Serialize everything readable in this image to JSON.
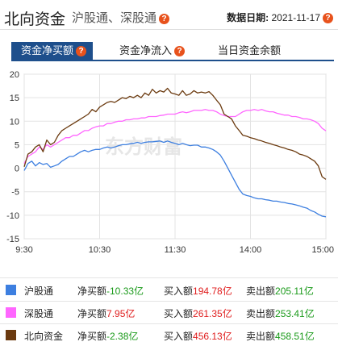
{
  "header": {
    "title": "北向资金",
    "subtitle": "沪股通、深股通",
    "date_label": "数据日期:",
    "date_value": "2021-11-17",
    "help_mark": "?"
  },
  "tabs": [
    {
      "label": "资金净买额",
      "active": true
    },
    {
      "label": "资金净流入",
      "active": false
    },
    {
      "label": "当日资金余额",
      "active": false
    }
  ],
  "watermark": "东方财富",
  "colors": {
    "hgt": "#3d7fe0",
    "sgt": "#ff66ff",
    "north": "#6b3a0f",
    "accent": "#1e4f8c",
    "help": "#e8521c"
  },
  "chart_data": {
    "type": "line",
    "y_ticks": [
      "20",
      "15",
      "10",
      "5",
      "0",
      "-5",
      "-10",
      "-15"
    ],
    "x_ticks": [
      "9:30",
      "10:30",
      "11:30",
      "14:00",
      "15:00"
    ],
    "ylim": [
      -15,
      20
    ],
    "x_range_minutes": [
      0,
      240
    ],
    "x_tick_minutes": [
      0,
      60,
      120,
      180,
      240
    ],
    "grid": true,
    "series": [
      {
        "name": "沪股通",
        "color": "#3d7fe0",
        "x": [
          0,
          3,
          6,
          9,
          12,
          15,
          18,
          21,
          24,
          27,
          30,
          33,
          36,
          39,
          42,
          45,
          48,
          51,
          54,
          57,
          60,
          63,
          66,
          69,
          72,
          75,
          78,
          81,
          84,
          87,
          90,
          93,
          96,
          99,
          102,
          105,
          108,
          111,
          114,
          117,
          120,
          123,
          126,
          129,
          132,
          135,
          138,
          141,
          144,
          147,
          150,
          153,
          156,
          159,
          162,
          165,
          168,
          171,
          174,
          177,
          180,
          183,
          186,
          189,
          192,
          195,
          198,
          201,
          204,
          207,
          210,
          213,
          216,
          219,
          222,
          225,
          228,
          231,
          234,
          237,
          240
        ],
        "y": [
          -0.5,
          1.0,
          1.5,
          0.5,
          1.2,
          0.8,
          1.0,
          0.2,
          0.5,
          0.8,
          1.5,
          2.0,
          2.5,
          2.5,
          3.0,
          3.5,
          3.8,
          3.5,
          3.8,
          4.0,
          4.0,
          4.3,
          4.5,
          4.3,
          4.5,
          4.8,
          5.0,
          5.0,
          5.2,
          5.3,
          5.5,
          5.3,
          5.5,
          5.6,
          5.6,
          5.7,
          5.8,
          5.5,
          5.8,
          5.5,
          5.3,
          5.0,
          5.3,
          5.0,
          4.8,
          4.9,
          4.9,
          4.5,
          4.5,
          4.3,
          4.0,
          3.5,
          2.8,
          1.5,
          0.0,
          -1.5,
          -3.0,
          -4.5,
          -5.5,
          -5.8,
          -6.0,
          -6.3,
          -6.5,
          -6.5,
          -6.7,
          -6.8,
          -7.0,
          -7.0,
          -7.2,
          -7.3,
          -7.5,
          -7.6,
          -7.8,
          -8.0,
          -8.3,
          -8.5,
          -9.0,
          -9.3,
          -9.8,
          -10.2,
          -10.33
        ]
      },
      {
        "name": "深股通",
        "color": "#ff66ff",
        "x": [
          0,
          3,
          6,
          9,
          12,
          15,
          18,
          21,
          24,
          27,
          30,
          33,
          36,
          39,
          42,
          45,
          48,
          51,
          54,
          57,
          60,
          63,
          66,
          69,
          72,
          75,
          78,
          81,
          84,
          87,
          90,
          93,
          96,
          99,
          102,
          105,
          108,
          111,
          114,
          117,
          120,
          123,
          126,
          129,
          132,
          135,
          138,
          141,
          144,
          147,
          150,
          153,
          156,
          159,
          162,
          165,
          168,
          171,
          174,
          177,
          180,
          183,
          186,
          189,
          192,
          195,
          198,
          201,
          204,
          207,
          210,
          213,
          216,
          219,
          222,
          225,
          228,
          231,
          234,
          237,
          240
        ],
        "y": [
          1.0,
          2.5,
          3.0,
          3.5,
          4.5,
          4.0,
          5.0,
          4.5,
          5.0,
          5.5,
          6.0,
          6.5,
          6.5,
          7.0,
          7.0,
          7.5,
          8.0,
          8.0,
          8.5,
          8.8,
          9.0,
          9.0,
          9.5,
          9.5,
          9.8,
          10.0,
          10.0,
          10.3,
          10.3,
          10.5,
          10.5,
          10.7,
          10.7,
          11.0,
          11.0,
          11.0,
          11.2,
          11.3,
          11.5,
          11.5,
          11.5,
          11.8,
          12.0,
          11.8,
          12.0,
          12.3,
          12.3,
          12.3,
          12.5,
          12.3,
          12.3,
          12.0,
          11.5,
          11.2,
          11.0,
          11.0,
          11.0,
          11.5,
          12.0,
          12.3,
          12.3,
          12.5,
          12.3,
          12.5,
          12.2,
          12.0,
          12.0,
          11.7,
          11.5,
          11.3,
          11.3,
          11.0,
          11.0,
          10.8,
          10.5,
          10.5,
          10.3,
          10.0,
          9.5,
          8.5,
          7.95
        ]
      },
      {
        "name": "北向资金",
        "color": "#6b3a0f",
        "x": [
          0,
          3,
          6,
          9,
          12,
          15,
          18,
          21,
          24,
          27,
          30,
          33,
          36,
          39,
          42,
          45,
          48,
          51,
          54,
          57,
          60,
          63,
          66,
          69,
          72,
          75,
          78,
          81,
          84,
          87,
          90,
          93,
          96,
          99,
          102,
          105,
          108,
          111,
          114,
          117,
          120,
          123,
          126,
          129,
          132,
          135,
          138,
          141,
          144,
          147,
          150,
          153,
          156,
          159,
          162,
          165,
          168,
          171,
          174,
          177,
          180,
          183,
          186,
          189,
          192,
          195,
          198,
          201,
          204,
          207,
          210,
          213,
          216,
          219,
          222,
          225,
          228,
          231,
          234,
          237,
          240
        ],
        "y": [
          0.3,
          3.0,
          3.5,
          4.5,
          5.0,
          3.5,
          6.0,
          5.0,
          5.5,
          7.0,
          8.0,
          8.5,
          9.0,
          9.5,
          10.0,
          10.5,
          11.0,
          11.5,
          12.5,
          12.0,
          13.0,
          13.5,
          14.0,
          14.2,
          14.0,
          14.5,
          15.0,
          14.8,
          15.3,
          15.0,
          15.5,
          15.0,
          16.0,
          15.5,
          16.8,
          16.0,
          16.5,
          16.2,
          17.0,
          16.0,
          15.8,
          15.5,
          16.5,
          15.5,
          15.8,
          16.5,
          16.0,
          16.2,
          16.0,
          16.3,
          15.5,
          14.5,
          13.5,
          11.5,
          11.0,
          10.5,
          9.0,
          8.0,
          7.0,
          6.8,
          6.5,
          6.3,
          6.0,
          5.8,
          5.5,
          5.3,
          5.0,
          4.8,
          4.5,
          4.3,
          4.0,
          3.8,
          3.5,
          3.0,
          2.8,
          2.5,
          2.0,
          1.5,
          0.5,
          -1.8,
          -2.38
        ]
      }
    ]
  },
  "legend": [
    {
      "name": "沪股通",
      "net_label": "净买额",
      "net_value": "-10.33亿",
      "buy_label": "买入额",
      "buy_value": "194.78亿",
      "sell_label": "卖出额",
      "sell_value": "205.11亿",
      "color": "#3d7fe0"
    },
    {
      "name": "深股通",
      "net_label": "净买额",
      "net_value": "7.95亿",
      "buy_label": "买入额",
      "buy_value": "261.35亿",
      "sell_label": "卖出额",
      "sell_value": "253.41亿",
      "color": "#ff66ff"
    },
    {
      "name": "北向资金",
      "net_label": "净买额",
      "net_value": "-2.38亿",
      "buy_label": "买入额",
      "buy_value": "456.13亿",
      "sell_label": "卖出额",
      "sell_value": "458.51亿",
      "color": "#6b3a0f"
    }
  ]
}
